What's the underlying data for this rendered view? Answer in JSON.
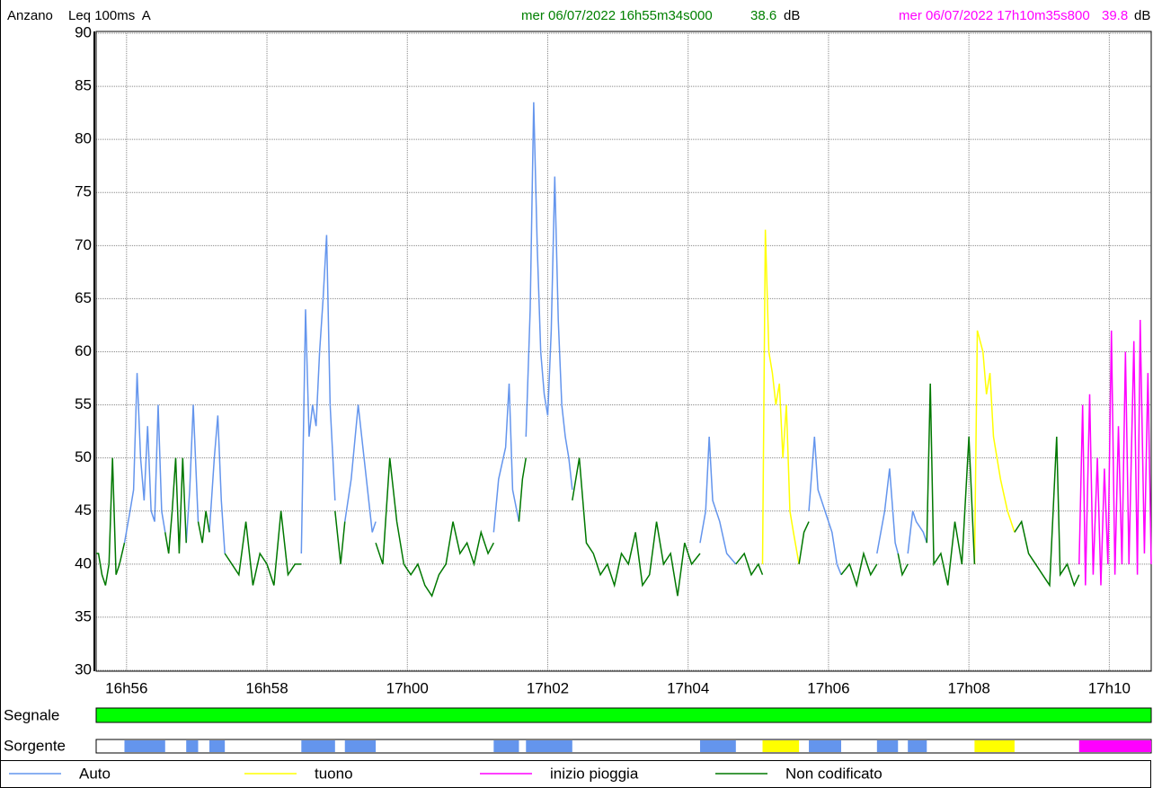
{
  "header": {
    "site": "Anzano",
    "measure": "Leq 100ms  A",
    "cursor1": {
      "time": "mer 06/07/2022 16h55m34s000",
      "value": 38.6,
      "unit": "dB"
    },
    "cursor2": {
      "time": "mer 06/07/2022 17h10m35s800",
      "value": 39.8,
      "unit": "dB"
    }
  },
  "chart_data": {
    "type": "line",
    "xlim": [
      55.567,
      70.597
    ],
    "ylim": [
      30,
      90
    ],
    "xticks": [
      {
        "value": 56,
        "label": "16h56"
      },
      {
        "value": 58,
        "label": "16h58"
      },
      {
        "value": 60,
        "label": "17h00"
      },
      {
        "value": 62,
        "label": "17h02"
      },
      {
        "value": 64,
        "label": "17h04"
      },
      {
        "value": 66,
        "label": "17h06"
      },
      {
        "value": 68,
        "label": "17h08"
      },
      {
        "value": 70,
        "label": "17h10"
      }
    ],
    "yticks": [
      30,
      35,
      40,
      45,
      50,
      55,
      60,
      65,
      70,
      75,
      80,
      85,
      90
    ],
    "grid": true,
    "signal_label": "Segnale",
    "signal_color": "#00ff00",
    "source_label": "Sorgente",
    "series": [
      {
        "name": "Auto",
        "color": "#6495ed",
        "x": [
          55.97,
          56.05,
          56.1,
          56.15,
          56.2,
          56.25,
          56.3,
          56.35,
          56.4,
          56.45,
          56.5,
          56.55,
          null,
          56.85,
          56.9,
          56.95,
          57.02,
          null,
          57.18,
          57.25,
          57.3,
          57.35,
          57.4,
          null,
          58.49,
          58.55,
          58.6,
          58.65,
          58.7,
          58.75,
          58.8,
          58.85,
          58.9,
          58.97,
          null,
          59.11,
          59.2,
          59.3,
          59.35,
          59.4,
          59.5,
          59.55,
          null,
          61.23,
          61.3,
          61.4,
          61.45,
          61.5,
          61.59,
          null,
          61.69,
          61.75,
          61.8,
          61.85,
          61.9,
          61.95,
          62.0,
          62.05,
          62.1,
          62.15,
          62.2,
          62.25,
          62.3,
          62.35,
          null,
          64.17,
          64.25,
          64.3,
          64.35,
          64.45,
          64.55,
          64.68,
          null,
          65.72,
          65.8,
          65.85,
          65.95,
          66.05,
          66.12,
          66.18,
          null,
          66.69,
          66.8,
          66.87,
          66.95,
          66.99,
          null,
          67.13,
          67.2,
          67.25,
          67.35,
          67.4
        ],
        "values": [
          42,
          45,
          47,
          58,
          50,
          46,
          53,
          45,
          44,
          55,
          45,
          43,
          null,
          42,
          47,
          55,
          44,
          null,
          43,
          50,
          54,
          46,
          41,
          null,
          41,
          64,
          52,
          55,
          53,
          60,
          65,
          71,
          55,
          46,
          null,
          44,
          48,
          55,
          52,
          49,
          43,
          44,
          null,
          43,
          48,
          51,
          57,
          47,
          44,
          null,
          52,
          64,
          83.5,
          70,
          60,
          56,
          54,
          62,
          76.5,
          63,
          55,
          52,
          50,
          47,
          null,
          42,
          45,
          52,
          46,
          44,
          41,
          40,
          null,
          45,
          52,
          47,
          45,
          43,
          40,
          39,
          null,
          41,
          45,
          49,
          42,
          41,
          null,
          41,
          45,
          44,
          43,
          42
        ]
      },
      {
        "name": "tuono",
        "color": "#ffff00",
        "x": [
          65.06,
          65.1,
          65.15,
          65.2,
          65.25,
          65.3,
          65.35,
          65.4,
          65.45,
          65.5,
          65.58,
          null,
          68.08,
          68.12,
          68.2,
          68.25,
          68.3,
          68.35,
          68.45,
          68.55,
          68.65
        ],
        "values": [
          40,
          71.5,
          60,
          58,
          55,
          57,
          50,
          55,
          45,
          43,
          40,
          null,
          40,
          62,
          60,
          56,
          58,
          52,
          48,
          45,
          43
        ]
      },
      {
        "name": "inizio pioggia",
        "color": "#ff00ff",
        "x": [
          69.57,
          69.62,
          69.66,
          69.72,
          69.77,
          69.83,
          69.88,
          69.93,
          69.98,
          70.03,
          70.08,
          70.13,
          70.18,
          70.23,
          70.28,
          70.35,
          70.4,
          70.44,
          70.5,
          70.55,
          70.597
        ],
        "values": [
          40,
          55,
          38,
          56,
          39,
          50,
          38,
          49,
          40,
          62,
          39,
          53,
          40,
          60,
          40,
          61,
          39,
          63,
          41,
          58,
          40
        ]
      },
      {
        "name": "Non codificato",
        "color": "#007800",
        "x": [
          55.567,
          55.6,
          55.65,
          55.7,
          55.75,
          55.8,
          55.85,
          55.9,
          55.97,
          null,
          56.55,
          56.6,
          56.65,
          56.7,
          56.75,
          56.8,
          56.85,
          null,
          57.02,
          57.08,
          57.13,
          57.18,
          null,
          57.4,
          57.5,
          57.6,
          57.7,
          57.8,
          57.9,
          58.0,
          58.1,
          58.2,
          58.3,
          58.4,
          58.49,
          null,
          58.97,
          59.05,
          59.11,
          null,
          59.55,
          59.65,
          59.75,
          59.85,
          59.95,
          60.05,
          60.15,
          60.25,
          60.35,
          60.45,
          60.55,
          60.65,
          60.75,
          60.85,
          60.95,
          61.05,
          61.15,
          61.23,
          null,
          61.59,
          61.64,
          61.69,
          null,
          62.35,
          62.45,
          62.55,
          62.65,
          62.75,
          62.85,
          62.95,
          63.05,
          63.15,
          63.25,
          63.35,
          63.45,
          63.55,
          63.65,
          63.75,
          63.85,
          63.95,
          64.05,
          64.17,
          null,
          64.68,
          64.8,
          64.9,
          65.0,
          65.06,
          null,
          65.58,
          65.65,
          65.72,
          null,
          66.18,
          66.3,
          66.4,
          66.5,
          66.6,
          66.69,
          null,
          66.99,
          67.05,
          67.13,
          null,
          67.4,
          67.45,
          67.5,
          67.6,
          67.7,
          67.8,
          67.9,
          68.0,
          68.08,
          null,
          68.65,
          68.75,
          68.85,
          68.95,
          69.05,
          69.15,
          69.25,
          69.3,
          69.4,
          69.5,
          69.57
        ],
        "values": [
          41,
          41,
          39,
          38,
          40,
          50,
          39,
          40,
          42,
          null,
          43,
          41,
          45,
          50,
          41,
          50,
          42,
          null,
          44,
          42,
          45,
          43,
          null,
          41,
          40,
          39,
          44,
          38,
          41,
          40,
          38,
          45,
          39,
          40,
          40,
          null,
          45,
          40,
          44,
          null,
          42,
          40,
          50,
          44,
          40,
          39,
          40,
          38,
          37,
          39,
          40,
          44,
          41,
          42,
          40,
          43,
          41,
          42,
          null,
          44,
          48,
          50,
          null,
          46,
          50,
          42,
          41,
          39,
          40,
          38,
          41,
          40,
          43,
          38,
          39,
          44,
          40,
          41,
          37,
          42,
          40,
          41,
          null,
          40,
          41,
          39,
          40,
          39,
          null,
          40,
          43,
          44,
          null,
          39,
          40,
          38,
          41,
          39,
          40,
          null,
          41,
          39,
          40,
          null,
          42,
          57,
          40,
          41,
          38,
          44,
          40,
          52,
          40,
          null,
          43,
          44,
          41,
          40,
          39,
          38,
          52,
          39,
          40,
          38,
          39
        ]
      }
    ]
  }
}
